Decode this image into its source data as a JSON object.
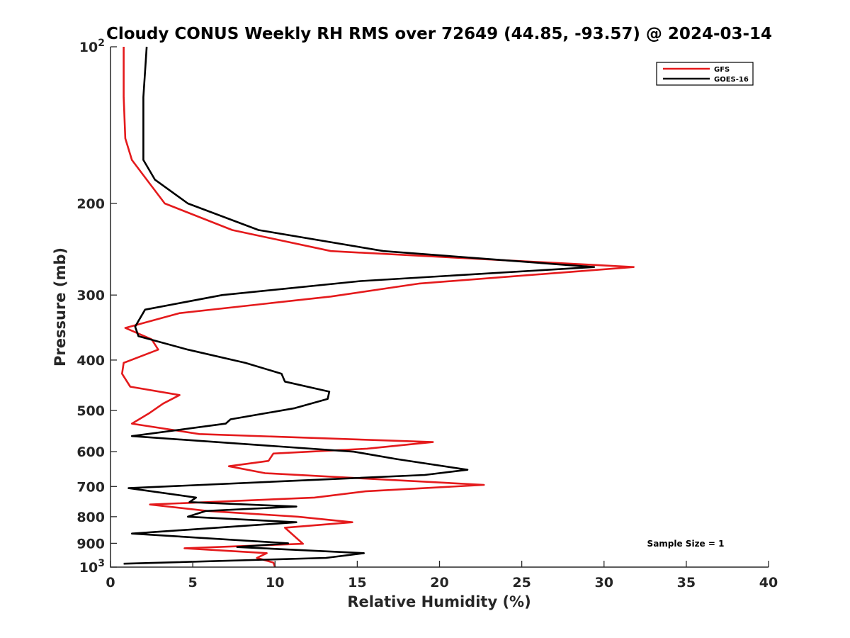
{
  "chart_data": {
    "type": "line",
    "title": "Cloudy CONUS Weekly RH RMS over 72649 (44.85, -93.57) @ 2024-03-14",
    "xlabel": "Relative Humidity (%)",
    "ylabel": "Pressure (mb)",
    "xlim": [
      0,
      40
    ],
    "ylim": [
      100,
      1000
    ],
    "y_scale": "log",
    "y_reversed": true,
    "x_ticks": [
      "0",
      "5",
      "10",
      "15",
      "20",
      "25",
      "30",
      "35",
      "40"
    ],
    "y_ticks": [
      {
        "value": 100,
        "base": "10",
        "exp": "2"
      },
      {
        "value": 200,
        "label": "200"
      },
      {
        "value": 300,
        "label": "300"
      },
      {
        "value": 400,
        "label": "400"
      },
      {
        "value": 500,
        "label": "500"
      },
      {
        "value": 600,
        "label": "600"
      },
      {
        "value": 700,
        "label": "700"
      },
      {
        "value": 800,
        "label": "800"
      },
      {
        "value": 900,
        "label": "900"
      },
      {
        "value": 1000,
        "base": "10",
        "exp": "3"
      }
    ],
    "grid": false,
    "legend_position": "top-right",
    "annotation": "Sample Size = 1",
    "series": [
      {
        "name": "GFS",
        "color": "#e41a1c",
        "points": [
          [
            0.8,
            100
          ],
          [
            0.8,
            125
          ],
          [
            0.9,
            150
          ],
          [
            1.3,
            165
          ],
          [
            2.2,
            180
          ],
          [
            3.3,
            200
          ],
          [
            7.4,
            225
          ],
          [
            13.4,
            247
          ],
          [
            31.8,
            265
          ],
          [
            18.8,
            285
          ],
          [
            13.4,
            302
          ],
          [
            4.2,
            325
          ],
          [
            0.9,
            347
          ],
          [
            2.5,
            365
          ],
          [
            2.9,
            382
          ],
          [
            0.8,
            405
          ],
          [
            0.7,
            425
          ],
          [
            1.2,
            450
          ],
          [
            4.2,
            467
          ],
          [
            3.2,
            485
          ],
          [
            2.4,
            505
          ],
          [
            1.3,
            530
          ],
          [
            5.4,
            555
          ],
          [
            19.6,
            575
          ],
          [
            15.6,
            592
          ],
          [
            9.9,
            605
          ],
          [
            9.6,
            625
          ],
          [
            7.2,
            640
          ],
          [
            9.4,
            660
          ],
          [
            22.7,
            695
          ],
          [
            15.5,
            715
          ],
          [
            12.4,
            735
          ],
          [
            2.4,
            758
          ],
          [
            5.9,
            780
          ],
          [
            11.4,
            800
          ],
          [
            14.7,
            820
          ],
          [
            10.6,
            840
          ],
          [
            11.7,
            902
          ],
          [
            4.5,
            920
          ],
          [
            9.5,
            940
          ],
          [
            8.9,
            960
          ],
          [
            9.9,
            980
          ],
          [
            10.0,
            1000
          ]
        ]
      },
      {
        "name": "GOES-16",
        "color": "#000000",
        "points": [
          [
            2.2,
            100
          ],
          [
            2.0,
            125
          ],
          [
            2.0,
            150
          ],
          [
            2.0,
            165
          ],
          [
            2.7,
            180
          ],
          [
            4.7,
            200
          ],
          [
            9.0,
            225
          ],
          [
            16.6,
            247
          ],
          [
            29.4,
            265
          ],
          [
            15.2,
            282
          ],
          [
            6.8,
            300
          ],
          [
            2.1,
            320
          ],
          [
            1.5,
            345
          ],
          [
            1.7,
            360
          ],
          [
            4.7,
            382
          ],
          [
            8.2,
            405
          ],
          [
            10.4,
            425
          ],
          [
            10.6,
            440
          ],
          [
            13.3,
            460
          ],
          [
            13.2,
            475
          ],
          [
            11.2,
            495
          ],
          [
            7.3,
            520
          ],
          [
            7.0,
            530
          ],
          [
            1.3,
            560
          ],
          [
            14.8,
            600
          ],
          [
            17.4,
            620
          ],
          [
            21.7,
            650
          ],
          [
            19.1,
            665
          ],
          [
            1.1,
            705
          ],
          [
            5.2,
            735
          ],
          [
            4.8,
            750
          ],
          [
            11.3,
            765
          ],
          [
            5.8,
            780
          ],
          [
            4.7,
            800
          ],
          [
            11.3,
            820
          ],
          [
            1.3,
            862
          ],
          [
            10.8,
            900
          ],
          [
            7.7,
            915
          ],
          [
            15.4,
            940
          ],
          [
            13.1,
            960
          ],
          [
            0.8,
            985
          ]
        ]
      }
    ]
  }
}
